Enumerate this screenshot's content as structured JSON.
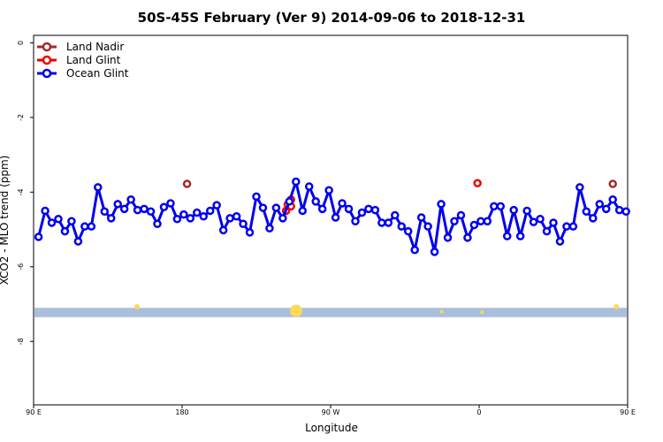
{
  "chart_data": {
    "type": "line",
    "title": "50S-45S February (Ver 9)   2014-09-06 to 2018-12-31",
    "xlabel": "Longitude",
    "ylabel": "XCO2 - MLO trend (ppm)",
    "xlim": [
      90,
      450
    ],
    "ylim": [
      0.2,
      -9.7
    ],
    "x_ticks": [
      {
        "value": 90,
        "label": "90 E"
      },
      {
        "value": 180,
        "label": "180"
      },
      {
        "value": 270,
        "label": "90 W"
      },
      {
        "value": 360,
        "label": "0"
      },
      {
        "value": 450,
        "label": "90 E"
      },
      {
        "value": 540,
        "label": "180"
      }
    ],
    "y_ticks": [
      {
        "value": 0,
        "label": "0"
      },
      {
        "value": -2,
        "label": "-2"
      },
      {
        "value": -4,
        "label": "-4"
      },
      {
        "value": -6,
        "label": "-6"
      },
      {
        "value": -8,
        "label": "-8"
      }
    ],
    "grid": false,
    "legend_position": "top-left",
    "land_band": {
      "y_from": -7.1,
      "y_to": -7.35,
      "color": "#a9bfdc"
    },
    "land_markers": [
      {
        "x": 0.174,
        "y": -7.07,
        "size": 3
      },
      {
        "x": 0.442,
        "y": -7.18,
        "size": 7
      },
      {
        "x": 0.687,
        "y": -7.2,
        "size": 2
      },
      {
        "x": 0.755,
        "y": -7.22,
        "size": 2
      },
      {
        "x": 0.981,
        "y": -7.07,
        "size": 3
      }
    ],
    "series": [
      {
        "name": "Land Nadir",
        "color": "#a52a2a",
        "connected": false,
        "points": [
          [
            183,
            -3.78
          ],
          [
            441,
            -3.78
          ]
        ]
      },
      {
        "name": "Land Glint",
        "color": "#ee0000",
        "connected": false,
        "points": [
          [
            243,
            -4.5
          ],
          [
            244,
            -4.33
          ],
          [
            246,
            -4.2
          ],
          [
            246,
            -4.38
          ],
          [
            359,
            -3.76
          ]
        ]
      },
      {
        "name": "Ocean Glint",
        "color": "#0000ee",
        "connected": true,
        "x": [
          93,
          97,
          101,
          105,
          109,
          113,
          117,
          121,
          125,
          129,
          133,
          137,
          141,
          145,
          149,
          153,
          157,
          161,
          165,
          169,
          173,
          177,
          181,
          185,
          189,
          193,
          197,
          201,
          205,
          209,
          213,
          217,
          221,
          225,
          229,
          233,
          237,
          241,
          245,
          249,
          253,
          257,
          261,
          265,
          269,
          273,
          277,
          281,
          285,
          289,
          293,
          297,
          301,
          305,
          309,
          313,
          317,
          321,
          325,
          329,
          333,
          337,
          341,
          345,
          349,
          353,
          357,
          361,
          365,
          369,
          373,
          377,
          381,
          385,
          389,
          393,
          397,
          401,
          405,
          409,
          413,
          417,
          421,
          425,
          429,
          433,
          437,
          441,
          445,
          449
        ],
        "y": [
          -5.2,
          -4.5,
          -4.82,
          -4.72,
          -5.05,
          -4.78,
          -5.32,
          -4.92,
          -4.92,
          -3.87,
          -4.52,
          -4.7,
          -4.32,
          -4.45,
          -4.2,
          -4.48,
          -4.45,
          -4.52,
          -4.85,
          -4.4,
          -4.3,
          -4.72,
          -4.6,
          -4.7,
          -4.55,
          -4.65,
          -4.5,
          -4.35,
          -5.02,
          -4.7,
          -4.65,
          -4.85,
          -5.08,
          -4.12,
          -4.42,
          -4.97,
          -4.42,
          -4.7,
          -4.25,
          -3.72,
          -4.5,
          -3.85,
          -4.25,
          -4.45,
          -3.95,
          -4.68,
          -4.3,
          -4.45,
          -4.78,
          -4.55,
          -4.45,
          -4.48,
          -4.82,
          -4.82,
          -4.62,
          -4.92,
          -5.05,
          -5.55,
          -4.68,
          -4.92,
          -5.6,
          -4.32,
          -5.22,
          -4.78,
          -4.62,
          -5.22,
          -4.88,
          -4.78,
          -4.78,
          -4.38,
          -4.38,
          -5.18,
          -4.48,
          -5.18,
          -4.5,
          -4.8,
          -4.72,
          -5.05,
          -4.82,
          -5.32,
          -4.92,
          -4.92,
          -3.87,
          -4.52,
          -4.7,
          -4.32,
          -4.45,
          -4.2,
          -4.48,
          -4.52
        ]
      }
    ]
  }
}
